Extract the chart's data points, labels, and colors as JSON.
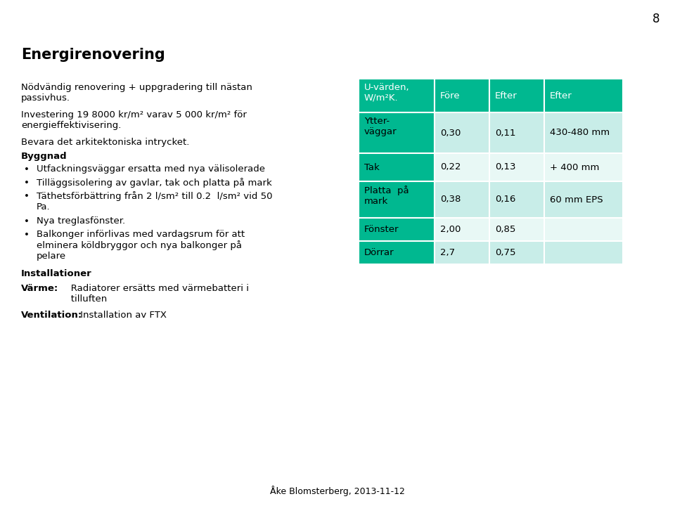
{
  "title": "Energirenovering",
  "page_number": "8",
  "background_color": "#ffffff",
  "title_color": "#000000",
  "title_fontsize": 15,
  "body_text_color": "#000000",
  "body_fontsize": 9.5,
  "table_header_color": "#00b890",
  "teal_col1": "#00b890",
  "teal_light1": "#c8ede8",
  "teal_light2": "#e8f8f5",
  "table_border_color": "#ffffff",
  "table_headers": [
    "U-värden,\nW/m²K.",
    "Före",
    "Efter",
    "Efter"
  ],
  "table_rows": [
    [
      "Ytter-\nväggar",
      "0,30",
      "0,11",
      "430-480 mm"
    ],
    [
      "Tak",
      "0,22",
      "0,13",
      "+ 400 mm"
    ],
    [
      "Platta  på\nmark",
      "0,38",
      "0,16",
      "60 mm EPS"
    ],
    [
      "Fönster",
      "2,00",
      "0,85",
      ""
    ],
    [
      "Dörrar",
      "2,7",
      "0,75",
      ""
    ]
  ],
  "row_data_bg": [
    "#c8ede8",
    "#e8f8f5",
    "#c8ede8",
    "#e8f8f5",
    "#c8ede8"
  ],
  "footer_text": "Åke Blomsterberg, 2013-11-12",
  "footer_color": "#000000"
}
